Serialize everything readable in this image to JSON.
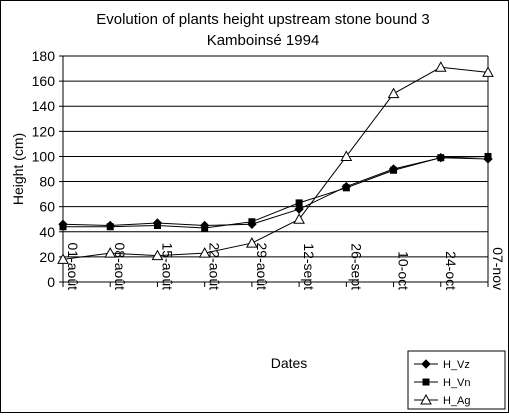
{
  "chart_data": {
    "type": "line",
    "title": "Evolution of plants height upstream stone bound 3",
    "subtitle": "Kamboinsé 1994",
    "xlabel": "Dates",
    "ylabel": "Height (cm)",
    "ylim": [
      0,
      180
    ],
    "yticks": [
      0,
      20,
      40,
      60,
      80,
      100,
      120,
      140,
      160,
      180
    ],
    "grid": "horizontal",
    "legend_position": "bottom-right",
    "categories": [
      "01-août",
      "08-août",
      "15-août",
      "22-août",
      "29-août",
      "12-sept",
      "26-sept",
      "10-oct",
      "24-oct",
      "07-nov"
    ],
    "series": [
      {
        "name": "H_Vz",
        "marker": "diamond",
        "values": [
          46,
          45,
          47,
          45,
          46,
          58,
          76,
          90,
          99,
          98
        ]
      },
      {
        "name": "H_Vn",
        "marker": "square",
        "values": [
          44,
          44,
          45,
          43,
          48,
          63,
          75,
          89,
          99,
          100
        ]
      },
      {
        "name": "H_Ag",
        "marker": "triangle-open",
        "values": [
          18,
          23,
          21,
          23,
          31,
          50,
          100,
          150,
          171,
          167
        ]
      }
    ]
  }
}
